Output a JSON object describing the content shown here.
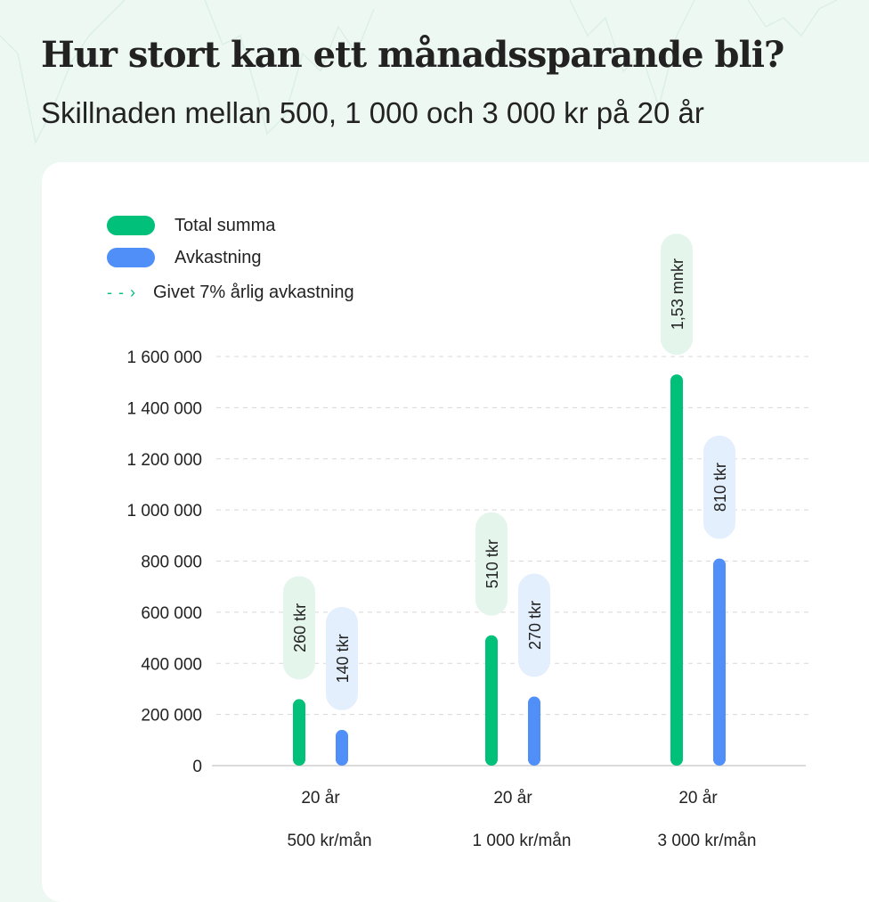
{
  "title": "Hur stort kan ett månadssparande bli?",
  "subtitle": "Skillnaden mellan 500, 1 000 och 3 000 kr på 20 år",
  "legend": {
    "total": "Total summa",
    "return": "Avkastning",
    "note": "Givet 7% årlig avkastning",
    "arrow_icon": "dashed-arrow-icon"
  },
  "colors": {
    "total": "#00c07a",
    "return": "#4f8ff7",
    "total_pill": "#e4f5ec",
    "return_pill": "#e4effd",
    "background": "#eef8f3"
  },
  "chart_data": {
    "type": "bar",
    "categories": [
      "500 kr/mån",
      "1 000 kr/mån",
      "3 000 kr/mån"
    ],
    "category_period": [
      "20 år",
      "20 år",
      "20 år"
    ],
    "series": [
      {
        "name": "Total summa",
        "values": [
          260000,
          510000,
          1530000
        ],
        "labels": [
          "260 tkr",
          "510 tkr",
          "1,53 mnkr"
        ]
      },
      {
        "name": "Avkastning",
        "values": [
          140000,
          270000,
          810000
        ],
        "labels": [
          "140 tkr",
          "270 tkr",
          "810 tkr"
        ]
      }
    ],
    "ylim": [
      0,
      1600000
    ],
    "yticks": [
      0,
      200000,
      400000,
      600000,
      800000,
      1000000,
      1200000,
      1400000,
      1600000
    ],
    "ytick_labels": [
      "0",
      "200 000",
      "400 000",
      "600 000",
      "800 000",
      "1 000 000",
      "1 200 000",
      "1 400 000",
      "1 600 000"
    ],
    "grid": true,
    "legend_position": "top-left"
  }
}
